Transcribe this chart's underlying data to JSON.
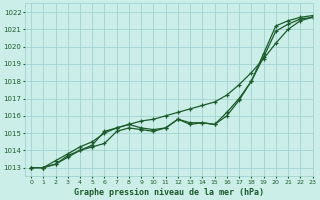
{
  "bg_color": "#cceee8",
  "grid_color": "#99cccc",
  "line_color": "#1a5c2a",
  "title": "Graphe pression niveau de la mer (hPa)",
  "ylabel_values": [
    1013,
    1014,
    1015,
    1016,
    1017,
    1018,
    1019,
    1020,
    1021,
    1022
  ],
  "xlim": [
    -0.5,
    23
  ],
  "ylim": [
    1012.5,
    1022.5
  ],
  "xticks": [
    0,
    1,
    2,
    3,
    4,
    5,
    6,
    7,
    8,
    9,
    10,
    11,
    12,
    13,
    14,
    15,
    16,
    17,
    18,
    19,
    20,
    21,
    22,
    23
  ],
  "line1_x": [
    0,
    1,
    2,
    3,
    4,
    5,
    6,
    7,
    8,
    9,
    10,
    11,
    12,
    13,
    14,
    15,
    16,
    17,
    18,
    19,
    20,
    21,
    22,
    23
  ],
  "line1_y": [
    1013.0,
    1013.0,
    1013.4,
    1013.8,
    1014.2,
    1014.5,
    1015.0,
    1015.3,
    1015.5,
    1015.7,
    1015.8,
    1016.0,
    1016.2,
    1016.4,
    1016.6,
    1016.8,
    1017.2,
    1017.8,
    1018.5,
    1019.3,
    1020.2,
    1021.0,
    1021.5,
    1021.7
  ],
  "line2_x": [
    0,
    1,
    2,
    3,
    4,
    5,
    6,
    7,
    8,
    9,
    10,
    11,
    12,
    13,
    14,
    15,
    16,
    17,
    18,
    19,
    20,
    21,
    22,
    23
  ],
  "line2_y": [
    1013.0,
    1013.0,
    1013.2,
    1013.7,
    1014.0,
    1014.3,
    1015.1,
    1015.3,
    1015.5,
    1015.3,
    1015.2,
    1015.3,
    1015.8,
    1015.5,
    1015.6,
    1015.5,
    1016.2,
    1017.0,
    1018.0,
    1019.4,
    1020.9,
    1021.3,
    1021.6,
    1021.7
  ],
  "line3_x": [
    0,
    1,
    2,
    3,
    4,
    5,
    6,
    7,
    8,
    9,
    10,
    11,
    12,
    13,
    14,
    15,
    16,
    17,
    18,
    19,
    20,
    21,
    22,
    23
  ],
  "line3_y": [
    1013.0,
    1013.0,
    1013.2,
    1013.6,
    1014.0,
    1014.2,
    1014.4,
    1015.1,
    1015.3,
    1015.2,
    1015.1,
    1015.3,
    1015.8,
    1015.6,
    1015.6,
    1015.5,
    1016.0,
    1016.9,
    1018.0,
    1019.6,
    1021.2,
    1021.5,
    1021.7,
    1021.8
  ]
}
